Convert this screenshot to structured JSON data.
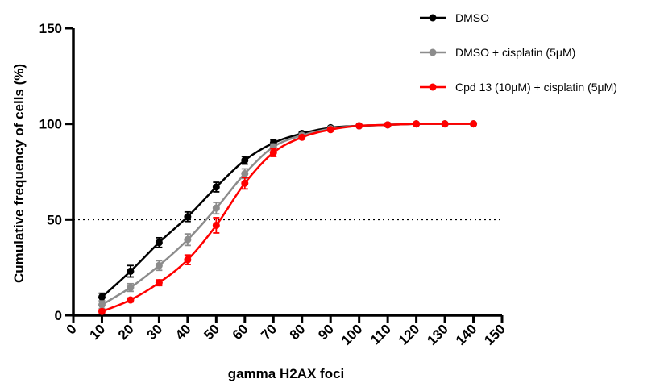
{
  "chart_data": {
    "type": "line",
    "title": "",
    "xlabel": "gamma H2AX foci",
    "ylabel": "Cumulative frequency of cells (%)",
    "xlim": [
      0,
      150
    ],
    "ylim": [
      0,
      150
    ],
    "xticks": [
      "0",
      "10",
      "20",
      "30",
      "40",
      "50",
      "60",
      "70",
      "80",
      "90",
      "100",
      "110",
      "120",
      "130",
      "140",
      "150"
    ],
    "yticks": [
      "0",
      "50",
      "100",
      "150"
    ],
    "reference_line": {
      "y": 50,
      "style": "dotted"
    },
    "legend_position": "top-right",
    "x": [
      10,
      20,
      30,
      40,
      50,
      60,
      70,
      80,
      90,
      100,
      110,
      120,
      130,
      140
    ],
    "series": [
      {
        "name": "DMSO",
        "color": "#000000",
        "values": [
          9.5,
          23,
          38,
          51.5,
          67,
          81,
          90,
          95,
          98,
          99,
          99.5,
          100,
          100,
          100
        ],
        "errors": [
          2,
          3,
          2.5,
          2.5,
          2.5,
          2,
          1.5,
          1,
          0.5,
          0.5,
          0.3,
          0.2,
          0.2,
          0.2
        ]
      },
      {
        "name": "DMSO + cisplatin (5μM)",
        "color": "#8c8c8c",
        "values": [
          5.5,
          14.5,
          26,
          39.5,
          56,
          74,
          88,
          94,
          97.5,
          99,
          99.5,
          100,
          100,
          100
        ],
        "errors": [
          2,
          2,
          2.5,
          3,
          3,
          2.5,
          1.5,
          1,
          0.5,
          0.5,
          0.3,
          0.2,
          0.2,
          0.2
        ]
      },
      {
        "name": "Cpd 13 (10μM) + cisplatin (5μM)",
        "color": "#ff0000",
        "values": [
          2,
          8,
          17,
          29,
          47,
          69,
          85,
          93,
          97,
          99,
          99.5,
          100,
          100,
          100
        ],
        "errors": [
          1,
          1,
          1.5,
          2.5,
          4,
          3,
          2,
          1,
          0.8,
          0.5,
          0.3,
          0.2,
          0.2,
          0.2
        ]
      }
    ]
  }
}
